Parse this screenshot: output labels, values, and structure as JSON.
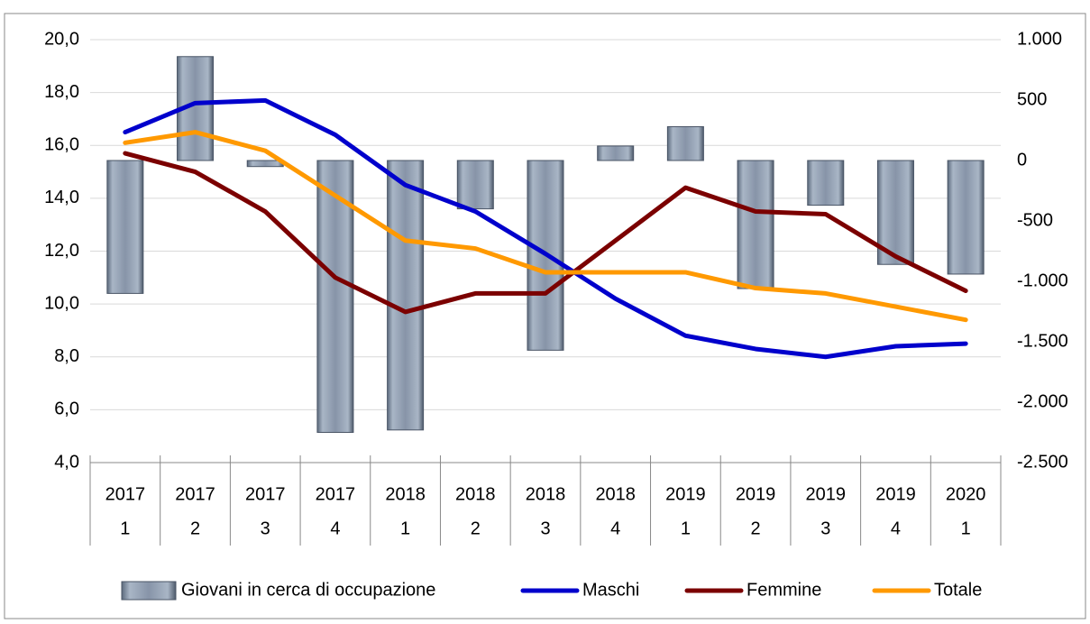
{
  "chart_data": {
    "type": "bar-line",
    "categories": [
      [
        "2017",
        "1"
      ],
      [
        "2017",
        "2"
      ],
      [
        "2017",
        "3"
      ],
      [
        "2017",
        "4"
      ],
      [
        "2018",
        "1"
      ],
      [
        "2018",
        "2"
      ],
      [
        "2018",
        "3"
      ],
      [
        "2018",
        "4"
      ],
      [
        "2019",
        "1"
      ],
      [
        "2019",
        "2"
      ],
      [
        "2019",
        "3"
      ],
      [
        "2019",
        "4"
      ],
      [
        "2020",
        "1"
      ]
    ],
    "series": [
      {
        "name": "Giovani in cerca di occupazione",
        "type": "bar",
        "axis": "y2",
        "color": "#7f8ea3",
        "values": [
          -1100,
          860,
          -50,
          -2250,
          -2230,
          -400,
          -1570,
          120,
          280,
          -1060,
          -370,
          -860,
          -940
        ]
      },
      {
        "name": "Maschi",
        "type": "line",
        "color": "#0000cc",
        "values": [
          16.5,
          17.6,
          17.7,
          16.4,
          14.5,
          13.5,
          11.9,
          10.2,
          8.8,
          8.3,
          8.0,
          8.4,
          8.5
        ]
      },
      {
        "name": "Femmine",
        "type": "line",
        "color": "#7b0000",
        "values": [
          15.7,
          15.0,
          13.5,
          11.0,
          9.7,
          10.4,
          10.4,
          12.4,
          14.4,
          13.5,
          13.4,
          11.8,
          10.5
        ]
      },
      {
        "name": "Totale",
        "type": "line",
        "color": "#ff9900",
        "values": [
          16.1,
          16.5,
          15.8,
          14.1,
          12.4,
          12.1,
          11.2,
          11.2,
          11.2,
          10.6,
          10.4,
          9.9,
          9.4
        ]
      }
    ],
    "ylim": [
      4,
      20
    ],
    "yticks": [
      {
        "value": 4,
        "label": "4,0"
      },
      {
        "value": 6,
        "label": "6,0"
      },
      {
        "value": 8,
        "label": "8,0"
      },
      {
        "value": 10,
        "label": "10,0"
      },
      {
        "value": 12,
        "label": "12,0"
      },
      {
        "value": 14,
        "label": "14,0"
      },
      {
        "value": 16,
        "label": "16,0"
      },
      {
        "value": 18,
        "label": "18,0"
      },
      {
        "value": 20,
        "label": "20,0"
      }
    ],
    "y2lim": [
      -2500,
      1000
    ],
    "y2ticks": [
      {
        "value": -2500,
        "label": "-2.500"
      },
      {
        "value": -2000,
        "label": "-2.000"
      },
      {
        "value": -1500,
        "label": "-1.500"
      },
      {
        "value": -1000,
        "label": "-1.000"
      },
      -500,
      0,
      500,
      {
        "value": 1000,
        "label": "1.000"
      }
    ],
    "grid": true,
    "legend": "bottom"
  }
}
